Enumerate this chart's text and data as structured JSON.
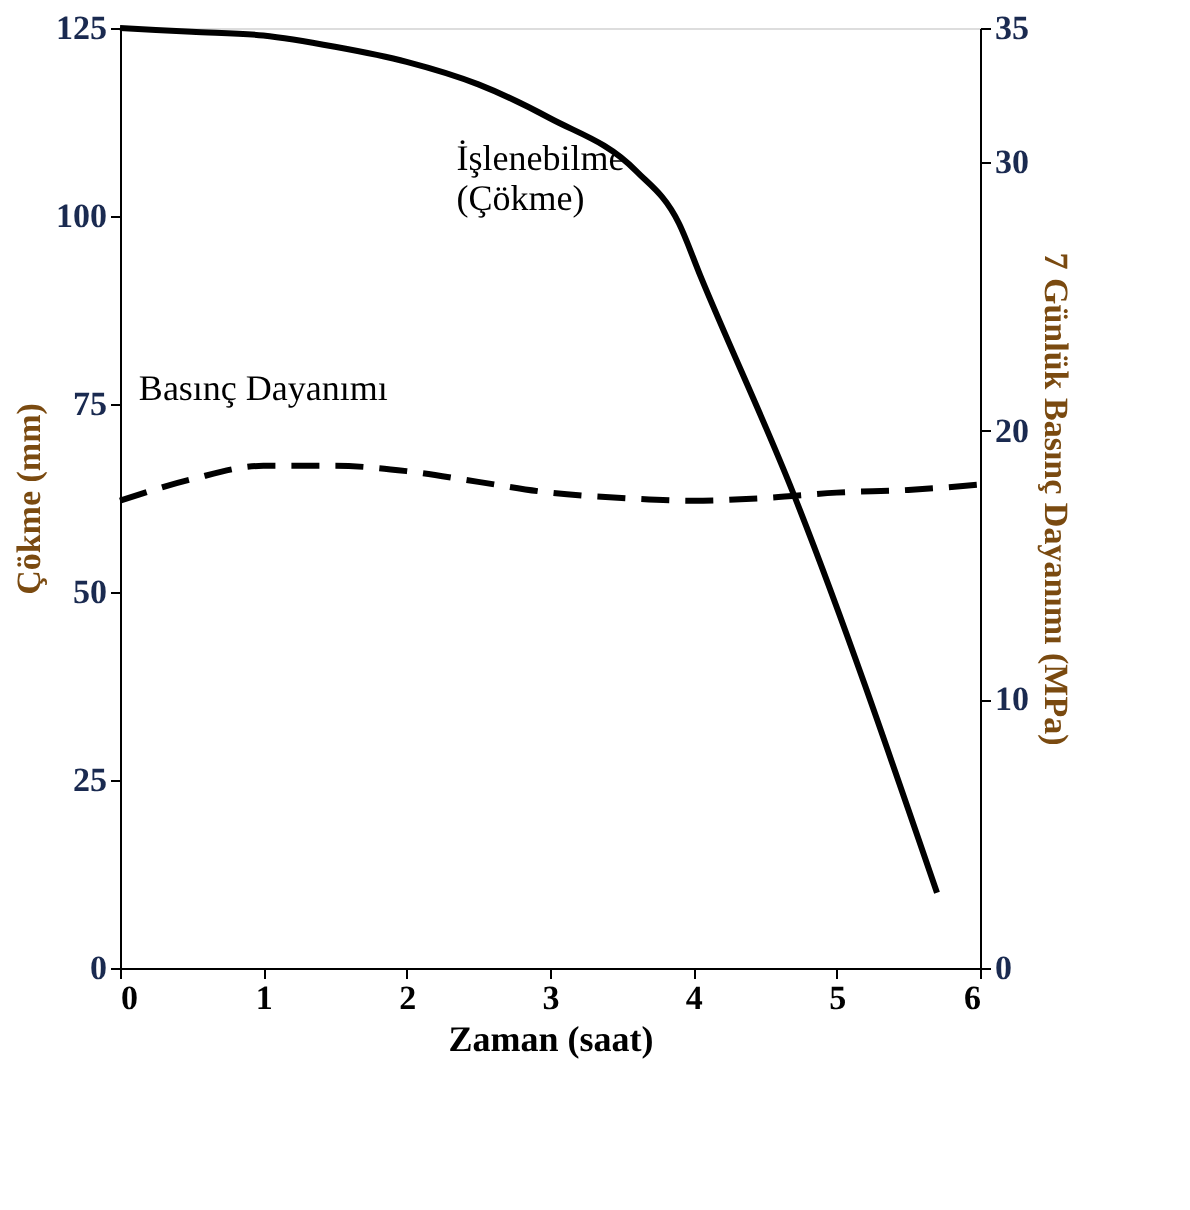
{
  "chart_data": {
    "type": "line",
    "xlabel": "Zaman (saat)",
    "ylabel": "Çökme (mm)",
    "y2label": "7 Günlük Basınç Dayanımı (MPa)",
    "xlim": [
      0,
      6
    ],
    "xticks": [
      0,
      1,
      2,
      3,
      4,
      5,
      6
    ],
    "ylim": [
      0,
      125
    ],
    "yticks": [
      0,
      25,
      50,
      75,
      100,
      125
    ],
    "y2lim": [
      0,
      35
    ],
    "y2ticks": [
      0,
      10,
      20,
      30,
      35
    ],
    "grid": false,
    "marker": "none",
    "series": [
      {
        "name": "İşlenebilme\n(Çökme)",
        "color": "#000000",
        "line_style": "solid",
        "x": [
          0,
          0.5,
          1,
          1.5,
          2,
          2.5,
          3,
          3.6,
          3.9,
          4.05,
          4.7,
          5.7
        ],
        "values": [
          125,
          124.5,
          124,
          122.5,
          120.5,
          117.5,
          113,
          106,
          99,
          92,
          63,
          10
        ]
      },
      {
        "name": "Basınç Dayanımı",
        "color": "#000000",
        "axis": "y2",
        "line_style": "dashed",
        "x": [
          0,
          0.5,
          1,
          1.5,
          2,
          2.5,
          3,
          3.5,
          4,
          4.5,
          5,
          5.5,
          6
        ],
        "values": [
          17.4,
          18.2,
          18.7,
          18.7,
          18.5,
          18.1,
          17.7,
          17.5,
          17.4,
          17.5,
          17.7,
          17.8,
          18.0
        ]
      }
    ]
  }
}
